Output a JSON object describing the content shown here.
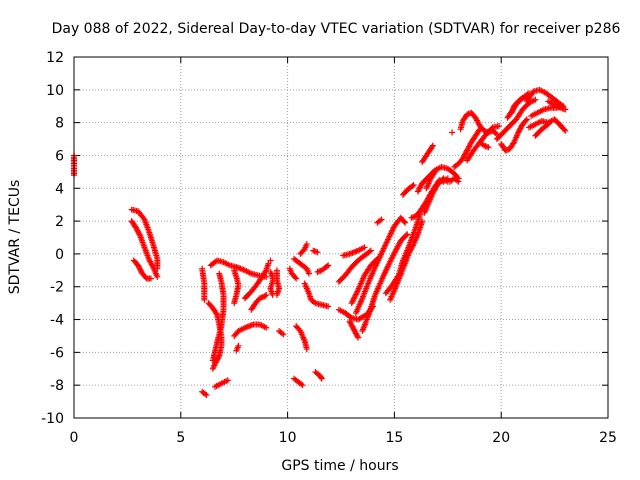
{
  "chart_data": {
    "type": "scatter",
    "title": "Day 088 of 2022, Sidereal Day-to-day VTEC variation (SDTVAR) for receiver p286",
    "xlabel": "GPS time / hours",
    "ylabel": "SDTVAR / TECUs",
    "xlim": [
      0,
      25
    ],
    "ylim": [
      -10,
      12
    ],
    "xticks": [
      0,
      5,
      10,
      15,
      20,
      25
    ],
    "yticks": [
      -10,
      -8,
      -6,
      -4,
      -2,
      0,
      2,
      4,
      6,
      8,
      10,
      12
    ],
    "grid": true,
    "marker": "+",
    "color": "#ff0000",
    "tracks": [
      [
        [
          0.0,
          6.0
        ],
        [
          0.0,
          5.3
        ],
        [
          0.0,
          4.8
        ]
      ],
      [
        [
          2.7,
          2.7
        ],
        [
          3.0,
          2.6
        ],
        [
          3.3,
          2.1
        ],
        [
          3.5,
          1.4
        ],
        [
          3.7,
          0.6
        ],
        [
          3.9,
          -0.3
        ],
        [
          3.9,
          -0.9
        ]
      ],
      [
        [
          2.7,
          2.0
        ],
        [
          2.9,
          1.6
        ],
        [
          3.1,
          1.1
        ],
        [
          3.3,
          0.4
        ],
        [
          3.5,
          -0.3
        ],
        [
          3.7,
          -0.8
        ],
        [
          3.9,
          -1.4
        ]
      ],
      [
        [
          2.8,
          -0.4
        ],
        [
          3.0,
          -0.7
        ],
        [
          3.2,
          -1.2
        ],
        [
          3.4,
          -1.5
        ],
        [
          3.6,
          -1.5
        ]
      ],
      [
        [
          6.0,
          -8.4
        ],
        [
          6.2,
          -8.6
        ]
      ],
      [
        [
          6.0,
          -0.9
        ],
        [
          6.1,
          -1.8
        ],
        [
          6.1,
          -2.8
        ]
      ],
      [
        [
          6.4,
          -0.7
        ],
        [
          6.7,
          -0.4
        ],
        [
          7.0,
          -0.5
        ],
        [
          7.3,
          -0.7
        ],
        [
          7.6,
          -0.8
        ],
        [
          8.0,
          -1.0
        ],
        [
          8.3,
          -1.2
        ],
        [
          8.6,
          -1.3
        ],
        [
          9.0,
          -1.4
        ]
      ],
      [
        [
          6.3,
          -3.0
        ],
        [
          6.5,
          -3.3
        ],
        [
          6.7,
          -3.7
        ],
        [
          6.8,
          -4.3
        ],
        [
          6.9,
          -5.0
        ],
        [
          6.9,
          -5.6
        ],
        [
          6.8,
          -6.2
        ],
        [
          6.6,
          -6.7
        ],
        [
          6.5,
          -7.0
        ]
      ],
      [
        [
          6.5,
          -6.5
        ],
        [
          6.7,
          -5.4
        ],
        [
          6.9,
          -4.4
        ],
        [
          7.0,
          -3.4
        ],
        [
          7.0,
          -2.5
        ],
        [
          6.9,
          -1.7
        ],
        [
          6.8,
          -1.2
        ]
      ],
      [
        [
          6.6,
          -8.1
        ],
        [
          6.9,
          -7.9
        ],
        [
          7.2,
          -7.7
        ]
      ],
      [
        [
          7.5,
          -1.0
        ],
        [
          7.6,
          -1.4
        ],
        [
          7.7,
          -1.9
        ],
        [
          7.6,
          -2.5
        ],
        [
          7.5,
          -3.0
        ]
      ],
      [
        [
          7.5,
          -5.0
        ],
        [
          7.7,
          -4.7
        ],
        [
          8.0,
          -4.5
        ],
        [
          8.4,
          -4.3
        ],
        [
          8.7,
          -4.3
        ],
        [
          9.0,
          -4.5
        ]
      ],
      [
        [
          7.6,
          -5.9
        ],
        [
          7.7,
          -5.6
        ]
      ],
      [
        [
          8.0,
          -2.7
        ],
        [
          8.3,
          -2.3
        ],
        [
          8.6,
          -1.8
        ],
        [
          8.8,
          -1.4
        ],
        [
          9.0,
          -1.0
        ],
        [
          9.1,
          -0.6
        ]
      ],
      [
        [
          8.3,
          -3.4
        ],
        [
          8.5,
          -3.0
        ],
        [
          8.7,
          -2.7
        ],
        [
          8.9,
          -2.6
        ],
        [
          9.0,
          -2.5
        ]
      ],
      [
        [
          9.2,
          -1.1
        ],
        [
          9.3,
          -1.4
        ],
        [
          9.3,
          -1.7
        ],
        [
          9.2,
          -2.1
        ],
        [
          9.3,
          -2.5
        ]
      ],
      [
        [
          9.2,
          -0.4
        ]
      ],
      [
        [
          9.5,
          -1.0
        ],
        [
          9.5,
          -1.6
        ],
        [
          9.6,
          -2.1
        ],
        [
          9.5,
          -2.5
        ]
      ],
      [
        [
          9.6,
          -4.7
        ],
        [
          9.8,
          -4.9
        ]
      ],
      [
        [
          10.1,
          -0.9
        ],
        [
          10.2,
          -1.2
        ],
        [
          10.4,
          -1.5
        ]
      ],
      [
        [
          10.3,
          -0.3
        ],
        [
          10.6,
          -0.6
        ],
        [
          10.9,
          -0.9
        ],
        [
          11.0,
          -1.2
        ]
      ],
      [
        [
          10.6,
          0.0
        ],
        [
          10.8,
          0.3
        ],
        [
          10.9,
          0.6
        ]
      ],
      [
        [
          10.8,
          -1.8
        ],
        [
          11.0,
          -2.4
        ],
        [
          11.1,
          -2.8
        ],
        [
          11.3,
          -3.0
        ],
        [
          11.6,
          -3.1
        ],
        [
          11.9,
          -3.2
        ]
      ],
      [
        [
          10.4,
          -4.4
        ],
        [
          10.6,
          -4.7
        ],
        [
          10.7,
          -5.0
        ],
        [
          10.8,
          -5.3
        ],
        [
          10.9,
          -5.8
        ]
      ],
      [
        [
          10.3,
          -7.6
        ],
        [
          10.5,
          -7.8
        ],
        [
          10.7,
          -8.0
        ]
      ],
      [
        [
          11.3,
          -7.2
        ],
        [
          11.5,
          -7.4
        ],
        [
          11.6,
          -7.6
        ]
      ],
      [
        [
          11.2,
          0.2
        ],
        [
          11.4,
          0.1
        ]
      ],
      [
        [
          11.4,
          -1.1
        ],
        [
          11.6,
          -1.0
        ],
        [
          11.8,
          -0.8
        ],
        [
          11.9,
          -0.7
        ]
      ],
      [
        [
          12.4,
          -1.7
        ],
        [
          12.7,
          -1.3
        ],
        [
          13.0,
          -0.8
        ],
        [
          13.3,
          -0.4
        ],
        [
          13.6,
          -0.1
        ],
        [
          13.9,
          0.2
        ]
      ],
      [
        [
          12.4,
          -3.4
        ],
        [
          12.7,
          -3.6
        ],
        [
          13.0,
          -3.9
        ],
        [
          13.3,
          -4.0
        ],
        [
          13.7,
          -3.7
        ],
        [
          14.0,
          -3.2
        ]
      ],
      [
        [
          12.6,
          -0.1
        ],
        [
          12.9,
          0.0
        ],
        [
          13.3,
          0.2
        ],
        [
          13.6,
          0.4
        ]
      ],
      [
        [
          12.9,
          -4.1
        ],
        [
          13.1,
          -4.6
        ],
        [
          13.3,
          -5.1
        ]
      ],
      [
        [
          13.0,
          -3.0
        ],
        [
          13.3,
          -2.2
        ],
        [
          13.6,
          -1.3
        ],
        [
          13.9,
          -0.7
        ],
        [
          14.2,
          -0.3
        ]
      ],
      [
        [
          13.2,
          -3.6
        ],
        [
          13.5,
          -2.7
        ],
        [
          13.8,
          -1.7
        ],
        [
          14.2,
          -0.5
        ],
        [
          14.6,
          0.6
        ],
        [
          15.0,
          1.7
        ],
        [
          15.3,
          2.2
        ],
        [
          15.5,
          1.9
        ]
      ],
      [
        [
          13.5,
          -4.7
        ],
        [
          13.8,
          -3.7
        ],
        [
          14.1,
          -2.5
        ],
        [
          14.5,
          -1.3
        ],
        [
          14.9,
          -0.2
        ],
        [
          15.3,
          0.8
        ],
        [
          15.6,
          1.2
        ]
      ],
      [
        [
          14.2,
          1.9
        ],
        [
          14.4,
          2.1
        ]
      ],
      [
        [
          14.6,
          -2.4
        ],
        [
          14.9,
          -1.9
        ],
        [
          15.2,
          -1.3
        ],
        [
          15.4,
          -0.4
        ],
        [
          15.6,
          0.2
        ],
        [
          15.8,
          0.9
        ],
        [
          16.0,
          1.6
        ],
        [
          16.2,
          2.4
        ]
      ],
      [
        [
          14.8,
          -2.8
        ],
        [
          15.1,
          -1.9
        ],
        [
          15.4,
          -0.9
        ],
        [
          15.7,
          0.1
        ],
        [
          15.9,
          0.6
        ],
        [
          16.1,
          1.2
        ],
        [
          16.3,
          2.0
        ]
      ],
      [
        [
          15.4,
          3.6
        ],
        [
          15.6,
          3.9
        ],
        [
          15.9,
          4.2
        ]
      ],
      [
        [
          15.8,
          2.2
        ],
        [
          16.0,
          2.3
        ],
        [
          16.2,
          2.6
        ],
        [
          16.5,
          3.2
        ],
        [
          16.8,
          3.9
        ],
        [
          17.1,
          4.5
        ],
        [
          17.3,
          4.4
        ],
        [
          17.5,
          4.6
        ]
      ],
      [
        [
          16.1,
          3.8
        ],
        [
          16.3,
          4.3
        ],
        [
          16.6,
          4.7
        ],
        [
          16.9,
          5.1
        ],
        [
          17.2,
          5.3
        ],
        [
          17.5,
          5.2
        ],
        [
          17.8,
          4.9
        ],
        [
          18.0,
          4.6
        ]
      ],
      [
        [
          16.3,
          5.6
        ],
        [
          16.6,
          6.2
        ],
        [
          16.8,
          6.6
        ]
      ],
      [
        [
          16.4,
          2.5
        ],
        [
          16.6,
          3.1
        ],
        [
          16.8,
          3.7
        ],
        [
          17.0,
          4.2
        ],
        [
          17.3,
          4.6
        ],
        [
          17.5,
          4.4
        ]
      ],
      [
        [
          16.5,
          4.0
        ],
        [
          16.7,
          4.6
        ],
        [
          16.9,
          5.0
        ]
      ],
      [
        [
          17.6,
          4.4
        ],
        [
          17.8,
          4.6
        ],
        [
          18.0,
          4.4
        ]
      ],
      [
        [
          17.8,
          5.3
        ],
        [
          18.0,
          5.5
        ],
        [
          18.2,
          5.8
        ],
        [
          18.4,
          6.3
        ],
        [
          18.6,
          6.8
        ],
        [
          18.8,
          7.2
        ],
        [
          19.0,
          7.6
        ]
      ],
      [
        [
          17.7,
          7.4
        ]
      ],
      [
        [
          18.1,
          7.6
        ],
        [
          18.2,
          8.1
        ],
        [
          18.4,
          8.5
        ],
        [
          18.6,
          8.6
        ],
        [
          18.8,
          8.3
        ],
        [
          19.0,
          7.8
        ],
        [
          19.2,
          7.5
        ],
        [
          19.4,
          7.4
        ],
        [
          19.6,
          7.5
        ],
        [
          19.8,
          7.3
        ]
      ],
      [
        [
          18.4,
          5.7
        ],
        [
          18.7,
          6.3
        ],
        [
          19.0,
          6.8
        ],
        [
          19.3,
          7.3
        ],
        [
          19.6,
          7.7
        ],
        [
          19.9,
          7.8
        ]
      ],
      [
        [
          19.0,
          6.8
        ],
        [
          19.2,
          6.6
        ],
        [
          19.4,
          6.5
        ]
      ],
      [
        [
          19.8,
          7.0
        ],
        [
          20.1,
          7.4
        ],
        [
          20.4,
          7.8
        ],
        [
          20.7,
          8.2
        ],
        [
          21.0,
          8.8
        ],
        [
          21.3,
          9.2
        ],
        [
          21.6,
          9.4
        ]
      ],
      [
        [
          20.0,
          6.7
        ],
        [
          20.2,
          6.3
        ],
        [
          20.4,
          6.4
        ],
        [
          20.6,
          6.8
        ],
        [
          20.8,
          7.4
        ],
        [
          21.0,
          7.9
        ],
        [
          21.2,
          8.2
        ]
      ],
      [
        [
          20.3,
          8.3
        ],
        [
          20.5,
          8.7
        ],
        [
          20.7,
          9.1
        ],
        [
          20.9,
          9.4
        ],
        [
          21.1,
          9.6
        ],
        [
          21.3,
          9.8
        ]
      ],
      [
        [
          20.5,
          8.6
        ],
        [
          20.6,
          9.0
        ],
        [
          20.8,
          9.3
        ],
        [
          21.0,
          9.5
        ],
        [
          21.2,
          9.6
        ]
      ],
      [
        [
          21.2,
          9.3
        ],
        [
          21.5,
          9.9
        ],
        [
          21.8,
          10.0
        ],
        [
          22.1,
          9.8
        ],
        [
          22.4,
          9.5
        ],
        [
          22.7,
          9.2
        ],
        [
          22.9,
          9.0
        ]
      ],
      [
        [
          21.4,
          8.4
        ],
        [
          21.7,
          8.6
        ],
        [
          22.0,
          8.8
        ],
        [
          22.3,
          8.9
        ],
        [
          22.6,
          8.9
        ],
        [
          22.9,
          9.0
        ]
      ],
      [
        [
          21.3,
          7.7
        ],
        [
          21.6,
          7.9
        ],
        [
          21.9,
          8.1
        ],
        [
          22.2,
          8.0
        ],
        [
          22.5,
          8.2
        ],
        [
          22.8,
          7.8
        ],
        [
          23.0,
          7.5
        ]
      ],
      [
        [
          21.6,
          7.2
        ],
        [
          21.9,
          7.6
        ],
        [
          22.2,
          7.9
        ]
      ],
      [
        [
          22.2,
          9.3
        ],
        [
          22.5,
          9.1
        ],
        [
          22.8,
          8.9
        ],
        [
          23.0,
          8.8
        ]
      ]
    ]
  }
}
